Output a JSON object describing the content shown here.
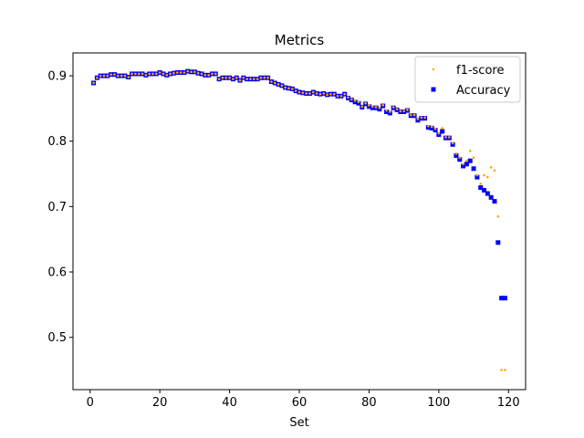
{
  "chart_data": {
    "type": "scatter",
    "title": "Metrics",
    "xlabel": "Set",
    "ylabel": "",
    "xlim": [
      -4.9,
      124.9
    ],
    "ylim": [
      0.42,
      0.935
    ],
    "xticks": [
      0,
      20,
      40,
      60,
      80,
      100,
      120
    ],
    "yticks": [
      0.5,
      0.6,
      0.7,
      0.8,
      0.9
    ],
    "ytick_labels": [
      "0.5",
      "0.6",
      "0.7",
      "0.8",
      "0.9"
    ],
    "grid": false,
    "legend_position": "top-right",
    "series": [
      {
        "name": "f1-score",
        "marker": "small-dot",
        "color": "#ffa500",
        "x": [
          1,
          2,
          3,
          4,
          5,
          6,
          7,
          8,
          9,
          10,
          11,
          12,
          13,
          14,
          15,
          16,
          17,
          18,
          19,
          20,
          21,
          22,
          23,
          24,
          25,
          26,
          27,
          28,
          29,
          30,
          31,
          32,
          33,
          34,
          35,
          36,
          37,
          38,
          39,
          40,
          41,
          42,
          43,
          44,
          45,
          46,
          47,
          48,
          49,
          50,
          51,
          52,
          53,
          54,
          55,
          56,
          57,
          58,
          59,
          60,
          61,
          62,
          63,
          64,
          65,
          66,
          67,
          68,
          69,
          70,
          71,
          72,
          73,
          74,
          75,
          76,
          77,
          78,
          79,
          80,
          81,
          82,
          83,
          84,
          85,
          86,
          87,
          88,
          89,
          90,
          91,
          92,
          93,
          94,
          95,
          96,
          97,
          98,
          99,
          100,
          101,
          102,
          103,
          104,
          105,
          106,
          107,
          108,
          109,
          110,
          111,
          112,
          113,
          114,
          115,
          116,
          117,
          118,
          119
        ],
        "values": [
          0.889,
          0.897,
          0.9,
          0.9,
          0.9,
          0.902,
          0.902,
          0.9,
          0.9,
          0.9,
          0.898,
          0.903,
          0.903,
          0.903,
          0.903,
          0.901,
          0.903,
          0.903,
          0.903,
          0.905,
          0.903,
          0.901,
          0.903,
          0.904,
          0.905,
          0.905,
          0.905,
          0.907,
          0.906,
          0.906,
          0.904,
          0.903,
          0.901,
          0.901,
          0.903,
          0.903,
          0.895,
          0.897,
          0.897,
          0.897,
          0.895,
          0.897,
          0.893,
          0.897,
          0.895,
          0.895,
          0.895,
          0.895,
          0.897,
          0.897,
          0.897,
          0.891,
          0.889,
          0.887,
          0.885,
          0.882,
          0.881,
          0.88,
          0.877,
          0.875,
          0.874,
          0.873,
          0.873,
          0.875,
          0.873,
          0.872,
          0.873,
          0.871,
          0.872,
          0.872,
          0.869,
          0.869,
          0.872,
          0.867,
          0.864,
          0.862,
          0.86,
          0.853,
          0.858,
          0.855,
          0.853,
          0.852,
          0.851,
          0.855,
          0.847,
          0.845,
          0.852,
          0.849,
          0.846,
          0.846,
          0.848,
          0.84,
          0.84,
          0.834,
          0.836,
          0.836,
          0.823,
          0.822,
          0.819,
          0.812,
          0.82,
          0.806,
          0.806,
          0.797,
          0.781,
          0.775,
          0.765,
          0.77,
          0.785,
          0.775,
          0.748,
          0.735,
          0.748,
          0.745,
          0.76,
          0.755,
          0.685,
          0.45,
          0.45
        ]
      },
      {
        "name": "Accuracy",
        "marker": "square",
        "color": "#0000ff",
        "x": [
          1,
          2,
          3,
          4,
          5,
          6,
          7,
          8,
          9,
          10,
          11,
          12,
          13,
          14,
          15,
          16,
          17,
          18,
          19,
          20,
          21,
          22,
          23,
          24,
          25,
          26,
          27,
          28,
          29,
          30,
          31,
          32,
          33,
          34,
          35,
          36,
          37,
          38,
          39,
          40,
          41,
          42,
          43,
          44,
          45,
          46,
          47,
          48,
          49,
          50,
          51,
          52,
          53,
          54,
          55,
          56,
          57,
          58,
          59,
          60,
          61,
          62,
          63,
          64,
          65,
          66,
          67,
          68,
          69,
          70,
          71,
          72,
          73,
          74,
          75,
          76,
          77,
          78,
          79,
          80,
          81,
          82,
          83,
          84,
          85,
          86,
          87,
          88,
          89,
          90,
          91,
          92,
          93,
          94,
          95,
          96,
          97,
          98,
          99,
          100,
          101,
          102,
          103,
          104,
          105,
          106,
          107,
          108,
          109,
          110,
          111,
          112,
          113,
          114,
          115,
          116,
          117,
          118,
          119
        ],
        "values": [
          0.889,
          0.897,
          0.9,
          0.9,
          0.9,
          0.902,
          0.902,
          0.9,
          0.9,
          0.9,
          0.898,
          0.903,
          0.903,
          0.903,
          0.903,
          0.901,
          0.903,
          0.903,
          0.903,
          0.905,
          0.903,
          0.901,
          0.903,
          0.904,
          0.905,
          0.905,
          0.905,
          0.907,
          0.906,
          0.906,
          0.904,
          0.903,
          0.901,
          0.901,
          0.903,
          0.903,
          0.895,
          0.897,
          0.897,
          0.897,
          0.895,
          0.897,
          0.893,
          0.897,
          0.895,
          0.895,
          0.895,
          0.895,
          0.897,
          0.897,
          0.897,
          0.891,
          0.889,
          0.887,
          0.885,
          0.882,
          0.881,
          0.88,
          0.877,
          0.875,
          0.874,
          0.873,
          0.873,
          0.875,
          0.873,
          0.872,
          0.873,
          0.871,
          0.872,
          0.872,
          0.869,
          0.869,
          0.872,
          0.866,
          0.863,
          0.86,
          0.858,
          0.852,
          0.857,
          0.853,
          0.851,
          0.851,
          0.849,
          0.854,
          0.845,
          0.843,
          0.851,
          0.848,
          0.845,
          0.845,
          0.847,
          0.839,
          0.839,
          0.832,
          0.835,
          0.835,
          0.821,
          0.82,
          0.817,
          0.81,
          0.815,
          0.805,
          0.805,
          0.795,
          0.778,
          0.772,
          0.762,
          0.765,
          0.77,
          0.758,
          0.745,
          0.729,
          0.725,
          0.72,
          0.714,
          0.708,
          0.645,
          0.56,
          0.56
        ]
      }
    ]
  }
}
